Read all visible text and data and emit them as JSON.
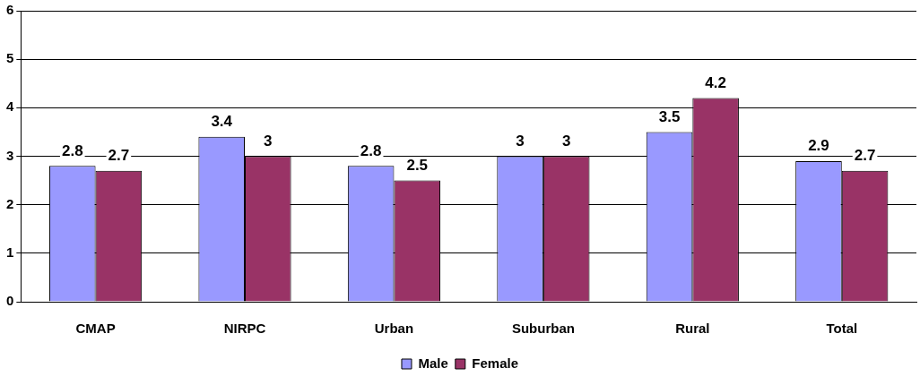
{
  "chart_data": {
    "type": "bar",
    "categories": [
      "CMAP",
      "NIRPC",
      "Urban",
      "Suburban",
      "Rural",
      "Total"
    ],
    "series": [
      {
        "name": "Male",
        "color": "#9999ff",
        "values": [
          2.8,
          3.4,
          2.8,
          3,
          3.5,
          2.9
        ]
      },
      {
        "name": "Female",
        "color": "#993366",
        "values": [
          2.7,
          3,
          2.5,
          3,
          4.2,
          2.7
        ]
      }
    ],
    "ylim": [
      0,
      6
    ],
    "yticks": [
      0,
      1,
      2,
      3,
      4,
      5,
      6
    ],
    "grid": "y",
    "legend": "bottom",
    "data_labels": true
  }
}
